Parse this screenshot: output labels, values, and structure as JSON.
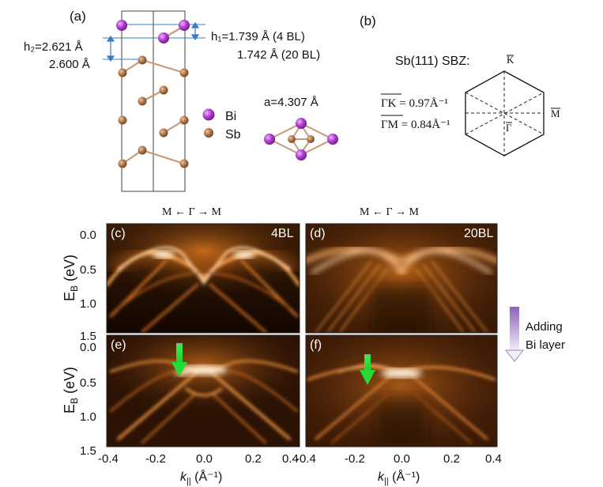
{
  "panel_a": {
    "label": "(a)",
    "h1_line1": "h₁=1.739 Å (4 BL)",
    "h1_line2": "1.742 Å (20 BL)",
    "h2_line1": "h₂=2.621 Å",
    "h2_line2": "2.600 Å",
    "lattice": "a=4.307 Å",
    "legend": [
      {
        "label": "Bi",
        "color": "#b43fd0"
      },
      {
        "label": "Sb",
        "color": "#b2784a"
      }
    ]
  },
  "panel_b": {
    "label": "(b)",
    "title": "Sb(111) SBZ:",
    "eq1_lhs": "ΓK",
    "eq1_rhs": " = 0.97Å⁻¹",
    "eq2_lhs": "ΓM",
    "eq2_rhs": " = 0.84Å⁻¹",
    "pt_K": "K",
    "pt_M": "M",
    "pt_G": "Γ"
  },
  "arpes": {
    "direction_left": "M ← Γ → M",
    "direction_right": "M ← Γ → M",
    "ylabel": "E",
    "ylabel_sub": "B",
    "ylabel_unit": " (eV)",
    "xlabel": "k",
    "xlabel_sub": "||",
    "xlabel_unit": " (Å⁻¹)",
    "yticks": [
      "0.0",
      "0.5",
      "1.0",
      "1.5"
    ],
    "xticks_left": [
      "-0.4",
      "-0.2",
      "0.0",
      "0.2",
      "0.4"
    ],
    "xticks_right": [
      "-0.4",
      "-0.2",
      "0.0",
      "0.2",
      "0.4"
    ],
    "panels": [
      {
        "label": "(c)",
        "tag": "4BL"
      },
      {
        "label": "(d)",
        "tag": "20BL"
      },
      {
        "label": "(e)",
        "tag": ""
      },
      {
        "label": "(f)",
        "tag": ""
      }
    ],
    "annotation_line1": "Adding",
    "annotation_line2": "Bi layer",
    "arrow_color": "#22ee33"
  }
}
